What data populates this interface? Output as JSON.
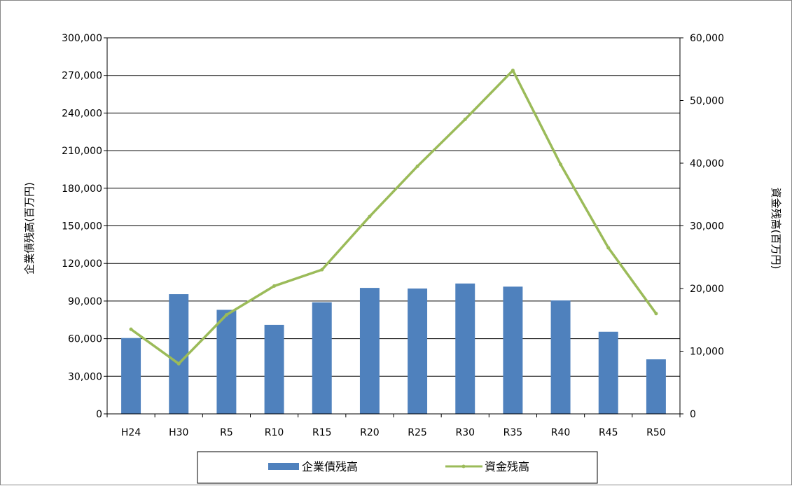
{
  "chart_data": {
    "type": "bar",
    "categories": [
      "H24",
      "H30",
      "R5",
      "R10",
      "R15",
      "R20",
      "R25",
      "R30",
      "R35",
      "R40",
      "R45",
      "R50"
    ],
    "series": [
      {
        "name": "企業債残高",
        "type": "bar",
        "axis": "left",
        "color": "#4F81BD",
        "values": [
          60500,
          95500,
          83000,
          71000,
          89000,
          100500,
          100000,
          104000,
          101500,
          90500,
          65500,
          43500
        ]
      },
      {
        "name": "資金残高",
        "type": "line",
        "axis": "right",
        "color": "#9BBB59",
        "values": [
          13500,
          8000,
          15800,
          20400,
          23000,
          31500,
          39500,
          47000,
          54800,
          39800,
          26500,
          16000
        ]
      }
    ],
    "ylabel": "企業債残高(百万円)",
    "y2label": "資金残高(百万円)",
    "ylim": [
      0,
      300000
    ],
    "y2lim": [
      0,
      60000
    ],
    "yticks": [
      "0",
      "30,000",
      "60,000",
      "90,000",
      "120,000",
      "150,000",
      "180,000",
      "210,000",
      "240,000",
      "270,000",
      "300,000"
    ],
    "y2ticks": [
      "0",
      "10,000",
      "20,000",
      "30,000",
      "40,000",
      "50,000",
      "60,000"
    ],
    "grid": true,
    "legend": "bottom"
  }
}
